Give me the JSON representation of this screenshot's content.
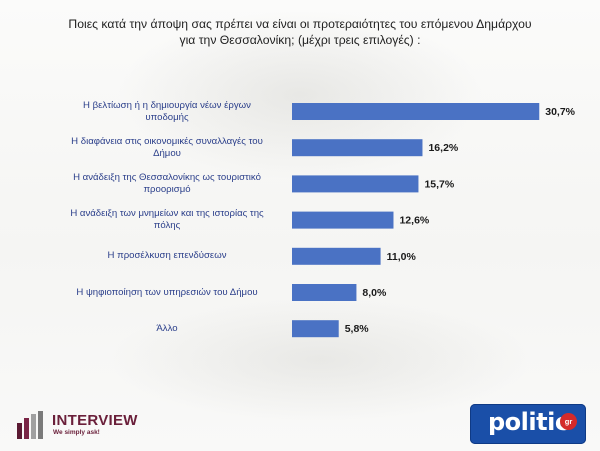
{
  "title": {
    "line1": "Ποιες κατά την  άποψη σας πρέπει να είναι οι προτεραιότητες του επόμενου Δημάρχου",
    "line2": "για την Θεσσαλονίκη; (μέχρι τρεις επιλογές) :"
  },
  "chart_data": {
    "type": "bar",
    "orientation": "horizontal",
    "categories": [
      [
        "Η βελτίωση ή η δημιουργία νέων έργων",
        "υποδομής"
      ],
      [
        "Η διαφάνεια στις οικονομικές συναλλαγές του",
        "Δήμου"
      ],
      [
        "Η ανάδειξη της Θεσσαλονίκης ως τουριστικό",
        "προορισμό"
      ],
      [
        "Η ανάδειξη των μνημείων και της ιστορίας της",
        "πόλης"
      ],
      [
        "Η προσέλκυση επενδύσεων"
      ],
      [
        "Η ψηφιοποίηση των υπηρεσιών του Δήμου"
      ],
      [
        "Άλλο"
      ]
    ],
    "values": [
      30.7,
      16.2,
      15.7,
      12.6,
      11.0,
      8.0,
      5.8
    ],
    "value_labels": [
      "30,7%",
      "16,2%",
      "15,7%",
      "12,6%",
      "11,0%",
      "8,0%",
      "5,8%"
    ],
    "xlim": [
      0,
      37
    ],
    "bar_color": "#4a72c4",
    "grid": false,
    "legend": "none"
  },
  "logos": {
    "interview": {
      "name": "INTERVIEW",
      "tagline": "We simply ask!"
    },
    "politic": {
      "name": "politic",
      "suffix": "gr"
    }
  }
}
